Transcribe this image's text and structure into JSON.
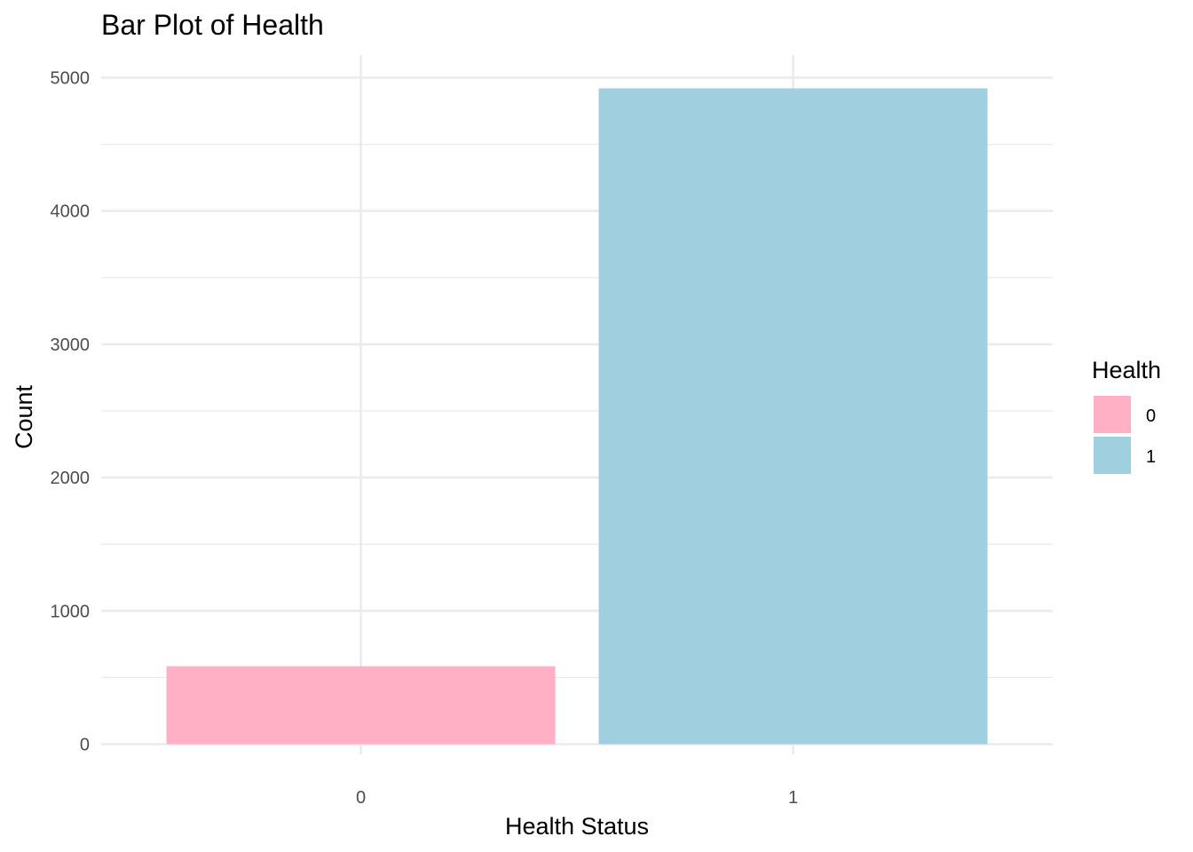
{
  "chart_data": {
    "type": "bar",
    "title": "Bar Plot of Health",
    "xlabel": "Health Status",
    "ylabel": "Count",
    "categories": [
      "0",
      "1"
    ],
    "values": [
      585,
      4920
    ],
    "ylim": [
      0,
      5150
    ],
    "yticks": [
      0,
      1000,
      2000,
      3000,
      4000,
      5000
    ],
    "ytick_labels": [
      "0",
      "1000",
      "2000",
      "3000",
      "4000",
      "5000"
    ],
    "grid": true,
    "legend": {
      "title": "Health",
      "position": "right",
      "entries": [
        {
          "label": "0",
          "color": "#FFB0C4"
        },
        {
          "label": "1",
          "color": "#A0CFE0"
        }
      ]
    },
    "colors": [
      "#FFB0C4",
      "#A0CFE0"
    ]
  }
}
